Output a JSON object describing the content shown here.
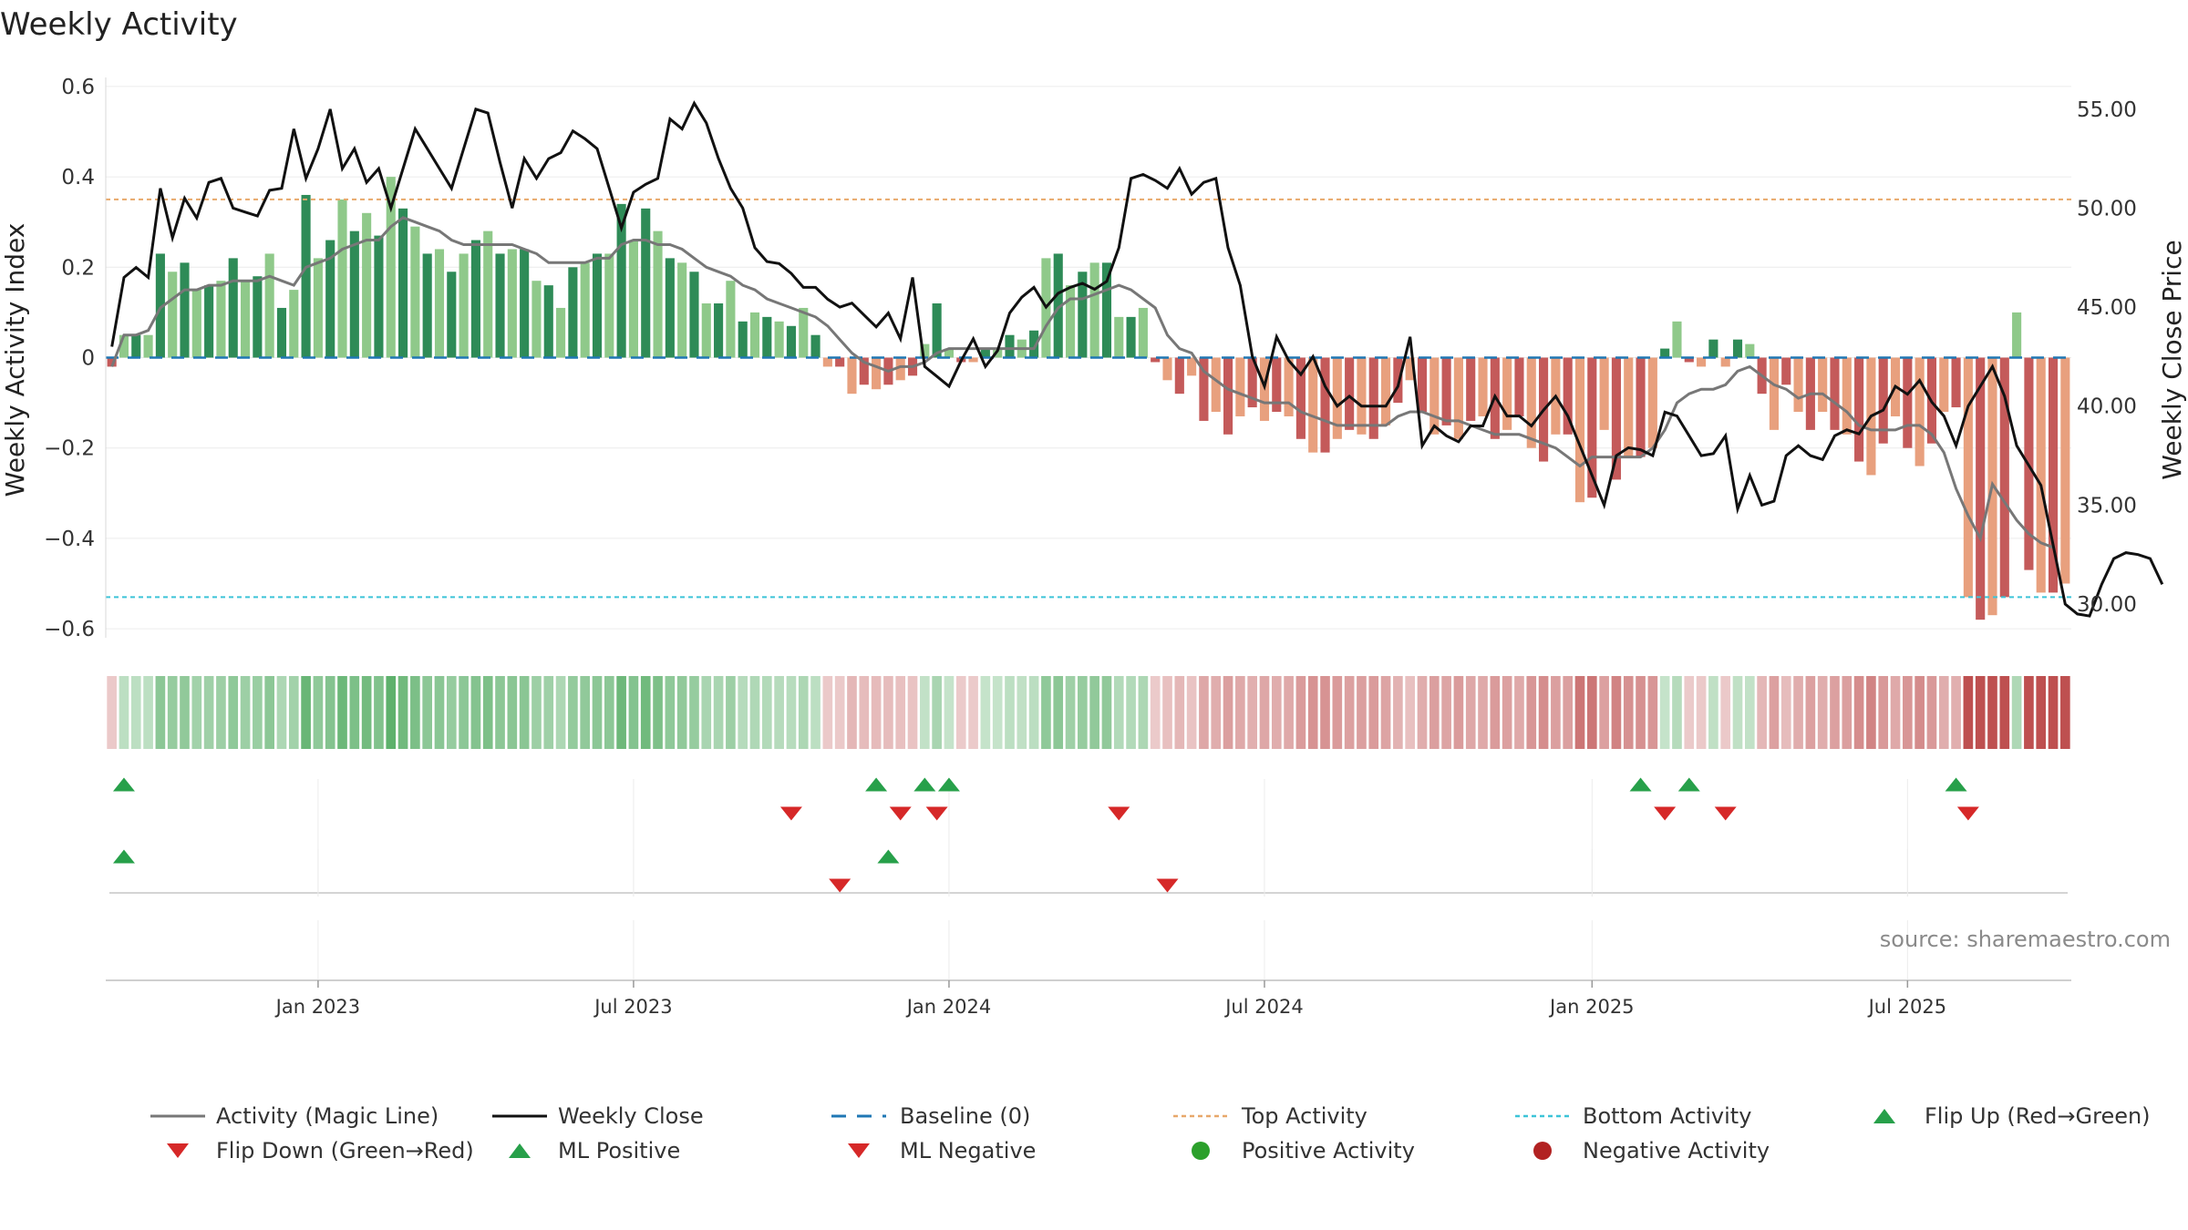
{
  "chart_data": {
    "type": "bar",
    "title": "Weekly Activity",
    "ylabel": "Weekly Activity Index",
    "y2label": "Weekly Close Price",
    "ylim": [
      -0.62,
      0.62
    ],
    "y2lim": [
      28.3,
      56.6
    ],
    "yticks": [
      {
        "v": 0.6,
        "label": "0.6"
      },
      {
        "v": 0.4,
        "label": "0.4"
      },
      {
        "v": 0.2,
        "label": "0.2"
      },
      {
        "v": 0,
        "label": "0"
      },
      {
        "v": -0.2,
        "label": "−0.2"
      },
      {
        "v": -0.4,
        "label": "−0.4"
      },
      {
        "v": -0.6,
        "label": "−0.6"
      }
    ],
    "y2ticks": [
      {
        "v": 55,
        "label": "55.00"
      },
      {
        "v": 50,
        "label": "50.00"
      },
      {
        "v": 45,
        "label": "45.00"
      },
      {
        "v": 40,
        "label": "40.00"
      },
      {
        "v": 35,
        "label": "35.00"
      },
      {
        "v": 30,
        "label": "30.00"
      }
    ],
    "xticks": [
      {
        "week": 17,
        "label": "Jan 2023"
      },
      {
        "week": 43,
        "label": "Jul 2023"
      },
      {
        "week": 69,
        "label": "Jan 2024"
      },
      {
        "week": 95,
        "label": "Jul 2024"
      },
      {
        "week": 122,
        "label": "Jan 2025"
      },
      {
        "week": 148,
        "label": "Jul 2025"
      }
    ],
    "top_activity": 0.35,
    "bottom_activity": -0.53,
    "activity": [
      -0.02,
      0.05,
      0.05,
      0.05,
      0.23,
      0.19,
      0.21,
      0.15,
      0.16,
      0.17,
      0.22,
      0.17,
      0.18,
      0.23,
      0.11,
      0.15,
      0.36,
      0.22,
      0.26,
      0.35,
      0.28,
      0.32,
      0.27,
      0.4,
      0.33,
      0.29,
      0.23,
      0.24,
      0.19,
      0.23,
      0.26,
      0.28,
      0.23,
      0.24,
      0.24,
      0.17,
      0.16,
      0.11,
      0.2,
      0.21,
      0.23,
      0.23,
      0.34,
      0.26,
      0.33,
      0.28,
      0.22,
      0.21,
      0.19,
      0.12,
      0.12,
      0.17,
      0.08,
      0.1,
      0.09,
      0.08,
      0.07,
      0.11,
      0.05,
      -0.02,
      -0.02,
      -0.08,
      -0.06,
      -0.07,
      -0.06,
      -0.05,
      -0.04,
      0.03,
      0.12,
      0.02,
      -0.01,
      -0.01,
      0.02,
      0.02,
      0.05,
      0.04,
      0.06,
      0.22,
      0.23,
      0.16,
      0.19,
      0.21,
      0.21,
      0.09,
      0.09,
      0.11,
      -0.01,
      -0.05,
      -0.08,
      -0.04,
      -0.14,
      -0.12,
      -0.17,
      -0.13,
      -0.11,
      -0.14,
      -0.12,
      -0.13,
      -0.18,
      -0.21,
      -0.21,
      -0.18,
      -0.16,
      -0.17,
      -0.18,
      -0.15,
      -0.1,
      -0.05,
      -0.12,
      -0.17,
      -0.15,
      -0.18,
      -0.14,
      -0.13,
      -0.18,
      -0.16,
      -0.13,
      -0.2,
      -0.23,
      -0.17,
      -0.17,
      -0.32,
      -0.31,
      -0.16,
      -0.27,
      -0.22,
      -0.22,
      -0.2,
      0.02,
      0.08,
      -0.01,
      -0.02,
      0.04,
      -0.02,
      0.04,
      0.03,
      -0.08,
      -0.16,
      -0.06,
      -0.12,
      -0.16,
      -0.12,
      -0.16,
      -0.17,
      -0.23,
      -0.26,
      -0.19,
      -0.13,
      -0.2,
      -0.24,
      -0.19,
      -0.12,
      -0.11,
      -0.53,
      -0.58,
      -0.57,
      -0.53,
      0.1,
      -0.47,
      -0.52,
      -0.52,
      -0.5
    ],
    "magic_line": [
      -0.02,
      0.05,
      0.05,
      0.06,
      0.11,
      0.13,
      0.15,
      0.15,
      0.16,
      0.16,
      0.17,
      0.17,
      0.17,
      0.18,
      0.17,
      0.16,
      0.2,
      0.21,
      0.22,
      0.24,
      0.25,
      0.26,
      0.26,
      0.29,
      0.31,
      0.3,
      0.29,
      0.28,
      0.26,
      0.25,
      0.25,
      0.25,
      0.25,
      0.25,
      0.24,
      0.23,
      0.21,
      0.21,
      0.21,
      0.21,
      0.22,
      0.22,
      0.25,
      0.26,
      0.26,
      0.25,
      0.25,
      0.24,
      0.22,
      0.2,
      0.19,
      0.18,
      0.16,
      0.15,
      0.13,
      0.12,
      0.11,
      0.1,
      0.09,
      0.07,
      0.04,
      0.01,
      -0.01,
      -0.02,
      -0.03,
      -0.02,
      -0.02,
      -0.01,
      0.01,
      0.02,
      0.02,
      0.02,
      0.02,
      0.02,
      0.02,
      0.02,
      0.02,
      0.07,
      0.11,
      0.13,
      0.13,
      0.14,
      0.15,
      0.16,
      0.15,
      0.13,
      0.11,
      0.05,
      0.02,
      0.01,
      -0.03,
      -0.05,
      -0.07,
      -0.08,
      -0.09,
      -0.1,
      -0.1,
      -0.1,
      -0.12,
      -0.13,
      -0.14,
      -0.15,
      -0.15,
      -0.15,
      -0.15,
      -0.15,
      -0.13,
      -0.12,
      -0.12,
      -0.13,
      -0.14,
      -0.14,
      -0.15,
      -0.16,
      -0.17,
      -0.17,
      -0.17,
      -0.18,
      -0.19,
      -0.2,
      -0.22,
      -0.24,
      -0.22,
      -0.22,
      -0.22,
      -0.22,
      -0.22,
      -0.2,
      -0.16,
      -0.1,
      -0.08,
      -0.07,
      -0.07,
      -0.06,
      -0.03,
      -0.02,
      -0.04,
      -0.06,
      -0.07,
      -0.09,
      -0.08,
      -0.08,
      -0.1,
      -0.12,
      -0.15,
      -0.16,
      -0.16,
      -0.16,
      -0.15,
      -0.15,
      -0.17,
      -0.21,
      -0.29,
      -0.35,
      -0.4,
      -0.28,
      -0.32,
      -0.36,
      -0.39,
      -0.41,
      -0.42
    ],
    "weekly_close": [
      43,
      46.5,
      47,
      46.5,
      51,
      48.5,
      50.5,
      49.5,
      51.3,
      51.5,
      50,
      49.8,
      49.6,
      50.9,
      51,
      54,
      51.5,
      53,
      55,
      52,
      53,
      51.3,
      52,
      50,
      52,
      54,
      53,
      52,
      51,
      53,
      55,
      54.8,
      52.3,
      50,
      52.5,
      51.5,
      52.5,
      52.8,
      53.9,
      53.5,
      53,
      51,
      49,
      50.8,
      51.2,
      51.5,
      54.5,
      54,
      55.3,
      54.3,
      52.5,
      51,
      50,
      48,
      47.3,
      47.2,
      46.7,
      46,
      46,
      45.4,
      45,
      45.2,
      44.6,
      44,
      44.7,
      43.4,
      46.5,
      42,
      41.5,
      41,
      42.3,
      43.4,
      42,
      42.8,
      44.7,
      45.5,
      46,
      45,
      45.7,
      46,
      46.2,
      45.9,
      46.3,
      48,
      51.5,
      51.7,
      51.4,
      51,
      52,
      50.7,
      51.3,
      51.5,
      48,
      46.1,
      42.5,
      41,
      43.5,
      42.3,
      41.6,
      42.5,
      41,
      40,
      40.5,
      40,
      40,
      40,
      41,
      43.5,
      38,
      39,
      38.5,
      38.2,
      39,
      39,
      40.5,
      39.5,
      39.5,
      39,
      39.8,
      40.5,
      39.5,
      38,
      36.5,
      35,
      37.5,
      37.9,
      37.8,
      37.5,
      39.7,
      39.5,
      38.5,
      37.5,
      37.6,
      38.5,
      34.8,
      36.5,
      35,
      35.2,
      37.5,
      38,
      37.5,
      37.3,
      38.5,
      38.8,
      38.6,
      39.5,
      39.8,
      41,
      40.6,
      41.3,
      40.2,
      39.5,
      38,
      40,
      41,
      42,
      40.5,
      38,
      37,
      36,
      33,
      30,
      29.5,
      29.4,
      31,
      32.3,
      32.6,
      32.5,
      32.3,
      31
    ],
    "flip_up": [
      1,
      63,
      67,
      69,
      126,
      130,
      152
    ],
    "flip_down": [
      56,
      65,
      68,
      83,
      128,
      133,
      153
    ],
    "ml_positive": [
      1,
      64
    ],
    "ml_negative": [
      60,
      87
    ],
    "legend": [
      {
        "key": "magic",
        "label": "Activity (Magic Line)"
      },
      {
        "key": "close",
        "label": "Weekly Close"
      },
      {
        "key": "baseline",
        "label": "Baseline (0)"
      },
      {
        "key": "top",
        "label": "Top Activity"
      },
      {
        "key": "bottom",
        "label": "Bottom Activity"
      },
      {
        "key": "flipup",
        "label": "Flip Up (Red→Green)"
      },
      {
        "key": "flipdown",
        "label": "Flip Down (Green→Red)"
      },
      {
        "key": "mlpos",
        "label": "ML Positive"
      },
      {
        "key": "mlneg",
        "label": "ML Negative"
      },
      {
        "key": "posact",
        "label": "Positive Activity"
      },
      {
        "key": "negact",
        "label": "Negative Activity"
      }
    ],
    "source": "source: sharemaestro.com"
  },
  "colors": {
    "pos_strong": "#2e8b57",
    "pos_light": "#8fc98a",
    "neg_strong": "#c45a5a",
    "neg_light": "#e8a07e",
    "magic": "#777777",
    "close": "#111111",
    "baseline": "#1f77b4",
    "top": "#e8a86a",
    "bottom": "#3cc4d8",
    "up_marker": "#27a04a",
    "down_marker": "#d62828",
    "pos_dot": "#2ca02c",
    "neg_dot": "#b22222"
  }
}
